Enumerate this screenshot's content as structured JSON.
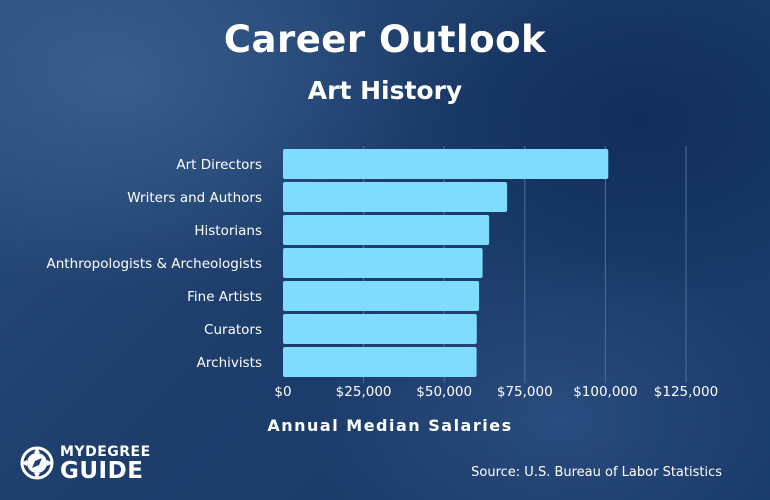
{
  "header": {
    "title": "Career Outlook",
    "subtitle": "Art History"
  },
  "footer": {
    "source": "Source: U.S. Bureau of Labor Statistics",
    "logo_top": "MYDEGREE",
    "logo_bottom": "GUIDE"
  },
  "colors": {
    "bar": "#7fdcff",
    "grid": "#4f6f99",
    "text": "#ffffff"
  },
  "chart_data": {
    "type": "bar",
    "orientation": "horizontal",
    "title": "Career Outlook",
    "subtitle": "Art History",
    "xlabel": "Annual Median Salaries",
    "ylabel": "",
    "categories": [
      "Art Directors",
      "Writers and Authors",
      "Historians",
      "Anthropologists & Archeologists",
      "Fine Artists",
      "Curators",
      "Archivists"
    ],
    "values": [
      100890,
      69510,
      63940,
      61910,
      60820,
      60110,
      60050
    ],
    "xlim": [
      0,
      125000
    ],
    "xticks": [
      0,
      25000,
      50000,
      75000,
      100000,
      125000
    ],
    "xtick_labels": [
      "$0",
      "$25,000",
      "$50,000",
      "$75,000",
      "$100,000",
      "$125,000"
    ],
    "grid": "vertical",
    "legend": "none"
  }
}
